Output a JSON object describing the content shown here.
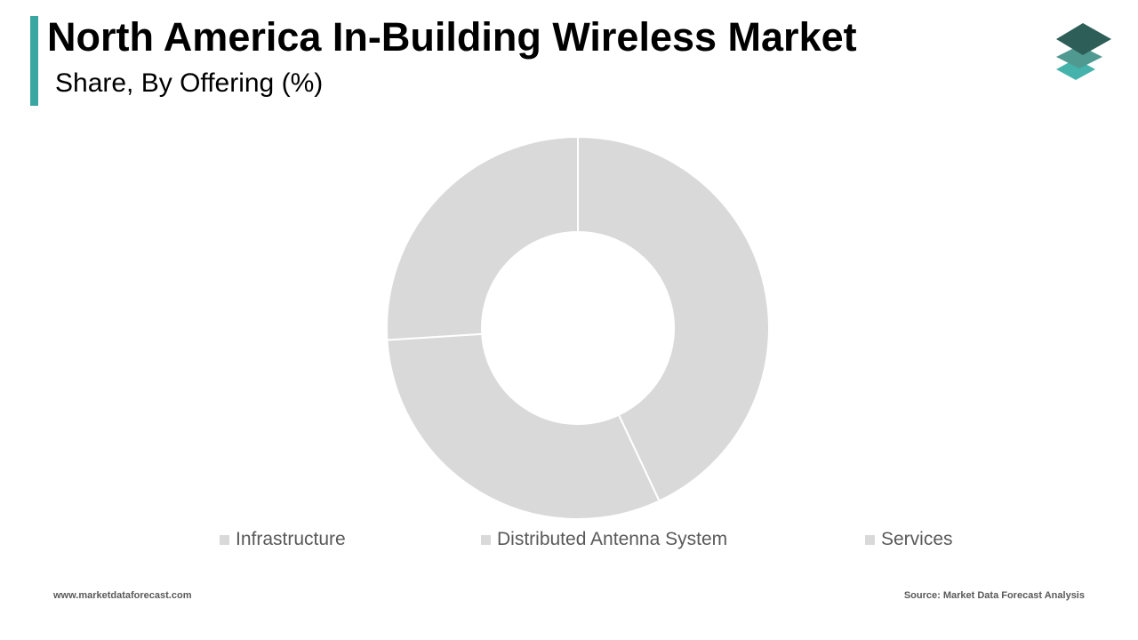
{
  "header": {
    "title": "North America In-Building Wireless Market",
    "subtitle": "Share, By Offering (%)"
  },
  "footer": {
    "website": "www.marketdataforecast.com",
    "source": "Source: Market Data Forecast Analysis"
  },
  "colors": {
    "accent": "#3aa6a2",
    "slice": "#d9d9d9",
    "legend_text": "#595959",
    "logo_dark": "#2e5e58",
    "logo_mid": "#4f9990",
    "logo_light": "#45b3ab"
  },
  "logo": {
    "icon": "layered-stack-icon"
  },
  "chart_data": {
    "type": "pie",
    "title": "North America In-Building Wireless Market",
    "subtitle": "Share, By Offering (%)",
    "donut": true,
    "categories": [
      "Infrastructure",
      "Distributed Antenna System",
      "Services"
    ],
    "values": [
      43,
      31,
      26
    ],
    "legend_position": "bottom"
  }
}
